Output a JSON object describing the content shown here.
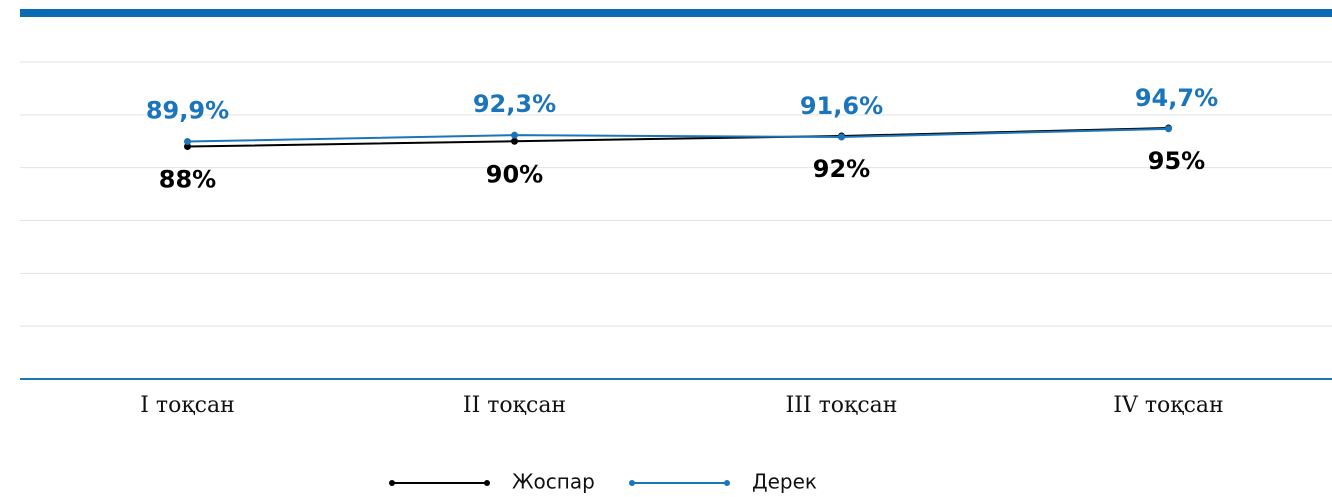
{
  "chart_data": {
    "type": "line",
    "categories": [
      "I тоқсан",
      "II тоқсан",
      "III тоқсан",
      "IV тоқсан"
    ],
    "series": [
      {
        "name": "Жоспар",
        "color": "#000000",
        "values": [
          88,
          90,
          92,
          95
        ],
        "value_labels": [
          "88%",
          "90%",
          "92%",
          "95%"
        ]
      },
      {
        "name": "Дерек",
        "color": "#1a75bb",
        "values": [
          89.9,
          92.3,
          91.6,
          94.7
        ],
        "value_labels": [
          "89,9%",
          "92,3%",
          "91,6%",
          "94,7%"
        ]
      }
    ],
    "ylim": [
      0,
      120
    ],
    "yticks": [
      0,
      20,
      40,
      60,
      80,
      100,
      120
    ],
    "grid": true,
    "legend": "bottom"
  }
}
